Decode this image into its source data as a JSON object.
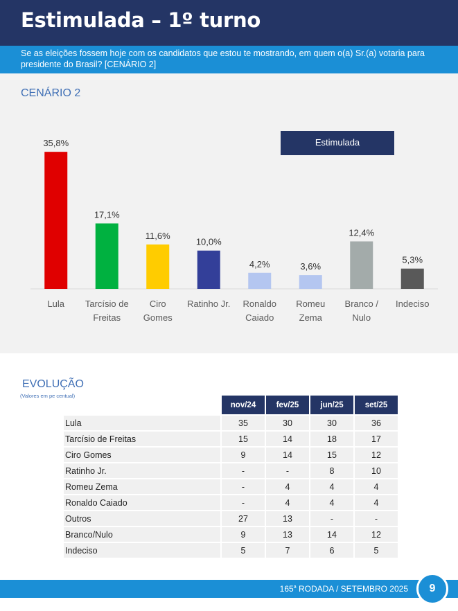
{
  "header": {
    "title": "Estimulada – 1º turno",
    "subtitle": "Se as eleições fossem hoje com os candidatos que estou te mostrando, em quem o(a) Sr.(a) votaria para presidente do Brasil? [CENÁRIO 2]"
  },
  "scenario_label": "CENÁRIO 2",
  "chart_data": {
    "type": "bar",
    "categories": [
      "Lula",
      "Tarcísio de Freitas",
      "Ciro Gomes",
      "Ratinho Jr.",
      "Ronaldo Caiado",
      "Romeu Zema",
      "Branco / Nulo",
      "Indeciso"
    ],
    "series": [
      {
        "name": "Estimulada",
        "values": [
          35.8,
          17.1,
          11.6,
          10.0,
          4.2,
          3.6,
          12.4,
          5.3
        ]
      }
    ],
    "data_labels": [
      "35,8%",
      "17,1%",
      "11,6%",
      "10,0%",
      "4,2%",
      "3,6%",
      "12,4%",
      "5,3%"
    ],
    "colors": [
      "#e00000",
      "#00b140",
      "#ffcc00",
      "#333f99",
      "#b4c6f0",
      "#b4c6f0",
      "#a3abaa",
      "#595959"
    ],
    "ylim": [
      0,
      38
    ],
    "grid": false,
    "legend": "top-right",
    "legend_label": "Estimulada",
    "title": "",
    "xlabel": "",
    "ylabel": ""
  },
  "evolution": {
    "title": "EVOLUÇÃO",
    "subtitle": "(Valores em pe centual)",
    "columns": [
      "nov/24",
      "fev/25",
      "jun/25",
      "set/25"
    ],
    "rows": [
      {
        "name": "Lula",
        "values": [
          "35",
          "30",
          "30",
          "36"
        ]
      },
      {
        "name": "Tarcísio de Freitas",
        "values": [
          "15",
          "14",
          "18",
          "17"
        ]
      },
      {
        "name": "Ciro Gomes",
        "values": [
          "9",
          "14",
          "15",
          "12"
        ]
      },
      {
        "name": "Ratinho Jr.",
        "values": [
          "-",
          "-",
          "8",
          "10"
        ]
      },
      {
        "name": "Romeu Zema",
        "values": [
          "-",
          "4",
          "4",
          "4"
        ]
      },
      {
        "name": "Ronaldo Caiado",
        "values": [
          "-",
          "4",
          "4",
          "4"
        ]
      },
      {
        "name": "Outros",
        "values": [
          "27",
          "13",
          "-",
          "-"
        ]
      },
      {
        "name": "Branco/Nulo",
        "values": [
          "9",
          "13",
          "14",
          "12"
        ]
      },
      {
        "name": "Indeciso",
        "values": [
          "5",
          "7",
          "6",
          "5"
        ]
      }
    ]
  },
  "footer": {
    "round_number": "165",
    "round_suffix": "a",
    "round_text": " RODADA / SETEMBRO 2025",
    "page_number": "9"
  }
}
